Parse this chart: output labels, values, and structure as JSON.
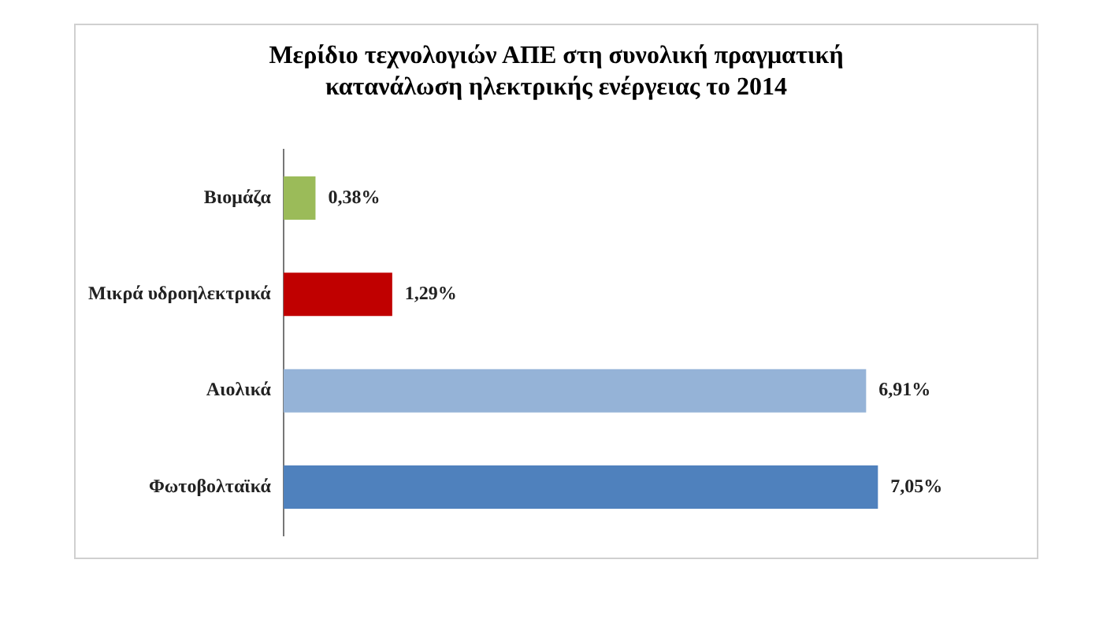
{
  "chart_data": {
    "type": "bar",
    "orientation": "horizontal",
    "title": "Μερίδιο τεχνολογιών ΑΠΕ στη συνολική πραγματική κατανάλωση ηλεκτρικής ενέργειας το 2014",
    "categories": [
      "Βιομάζα",
      "Μικρά υδροηλεκτρικά",
      "Αιολικά",
      "Φωτοβολταϊκά"
    ],
    "values": [
      0.38,
      1.29,
      6.91,
      7.05
    ],
    "colors": [
      "#9bbb59",
      "#c00000",
      "#95b3d7",
      "#4f81bd"
    ],
    "value_labels": [
      "0,38%",
      "1,29%",
      "6,91%",
      "7,05%"
    ],
    "tick_labels": "y",
    "legend": false
  }
}
